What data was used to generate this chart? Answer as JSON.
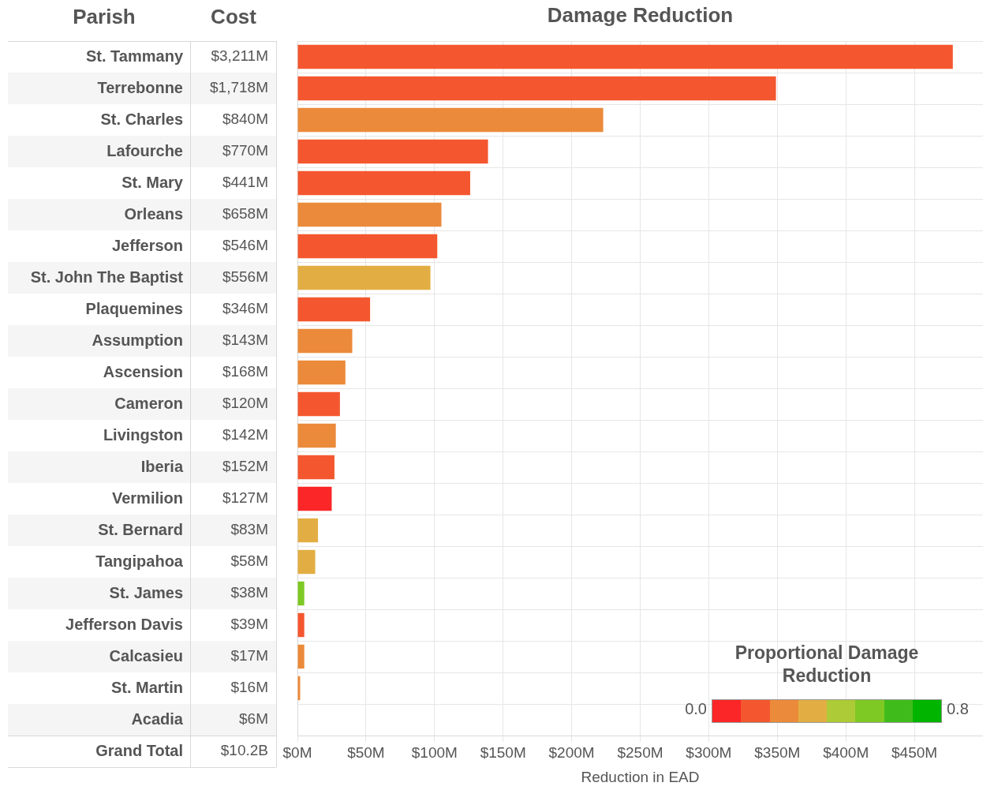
{
  "chart_data": {
    "type": "bar",
    "orientation": "horizontal",
    "title": "Damage Reduction",
    "xlabel": "Reduction in EAD",
    "ylabel": "Parish",
    "clabel": "Proportional Damage Reduction",
    "categories": [
      "St. Tammany",
      "Terrebonne",
      "St. Charles",
      "Lafourche",
      "St. Mary",
      "Orleans",
      "Jefferson",
      "St. John The Baptist",
      "Plaquemines",
      "Assumption",
      "Ascension",
      "Cameron",
      "Livingston",
      "Iberia",
      "Vermilion",
      "St. Bernard",
      "Tangipahoa",
      "St. James",
      "Jefferson Davis",
      "Calcasieu",
      "St. Martin",
      "Acadia"
    ],
    "values": [
      478,
      349,
      223,
      139,
      126,
      105,
      102,
      97,
      53,
      40,
      35,
      31,
      28,
      27,
      25,
      15,
      13,
      5,
      5,
      5,
      2,
      0
    ],
    "colors": [
      "#f4572f",
      "#f4572f",
      "#eb8a3a",
      "#f4572f",
      "#f4572f",
      "#eb8a3a",
      "#f4572f",
      "#e2ae43",
      "#f4572f",
      "#eb8a3a",
      "#eb8a3a",
      "#f4572f",
      "#eb8a3a",
      "#f4572f",
      "#fb2627",
      "#e2ae43",
      "#e2ae43",
      "#7ec924",
      "#f4572f",
      "#eb8a3a",
      "#eb8a3a",
      "#eb8a3a"
    ],
    "xlim": [
      0,
      500
    ],
    "xticks": [
      {
        "value": 0,
        "label": "$0M"
      },
      {
        "value": 50,
        "label": "$50M"
      },
      {
        "value": 100,
        "label": "$100M"
      },
      {
        "value": 150,
        "label": "$150M"
      },
      {
        "value": 200,
        "label": "$200M"
      },
      {
        "value": 250,
        "label": "$250M"
      },
      {
        "value": 300,
        "label": "$300M"
      },
      {
        "value": 350,
        "label": "$350M"
      },
      {
        "value": 400,
        "label": "$400M"
      },
      {
        "value": 450,
        "label": "$450M"
      }
    ],
    "grid": true,
    "legend": false,
    "annotations": [
      "Cost",
      "Grand Total",
      "$10.2B",
      "$3,211M",
      "$1,718M",
      "$840M",
      "$770M",
      "$441M",
      "$658M",
      "$546M",
      "$556M",
      "$346M",
      "$143M",
      "$168M",
      "$120M",
      "$142M",
      "$152M",
      "$127M",
      "$83M",
      "$58M",
      "$38M",
      "$39M",
      "$17M",
      "$16M",
      "$6M",
      "0.0",
      "0.8"
    ]
  }
}
